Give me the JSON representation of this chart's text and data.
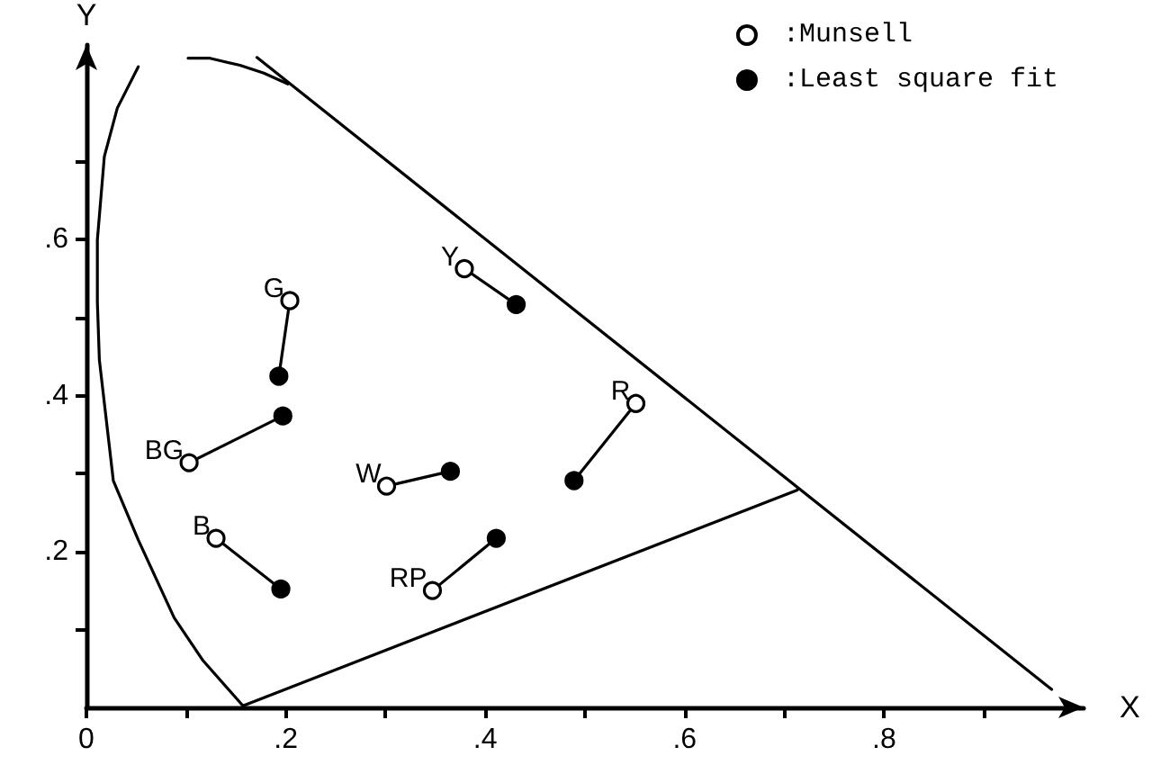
{
  "chart_data": {
    "type": "scatter",
    "xlabel": "X",
    "ylabel": "Y",
    "xlim": [
      0,
      1
    ],
    "ylim": [
      0,
      0.85
    ],
    "xticks": [
      {
        "value": 0,
        "label": "0"
      },
      {
        "value": 0.1,
        "label": null
      },
      {
        "value": 0.2,
        "label": ".2"
      },
      {
        "value": 0.3,
        "label": null
      },
      {
        "value": 0.4,
        "label": ".4"
      },
      {
        "value": 0.5,
        "label": null
      },
      {
        "value": 0.6,
        "label": ".6"
      },
      {
        "value": 0.7,
        "label": null
      },
      {
        "value": 0.8,
        "label": ".8"
      },
      {
        "value": 0.9,
        "label": null
      }
    ],
    "yticks": [
      {
        "value": 0.1,
        "label": null
      },
      {
        "value": 0.2,
        "label": ".2"
      },
      {
        "value": 0.3,
        "label": null
      },
      {
        "value": 0.4,
        "label": ".4"
      },
      {
        "value": 0.5,
        "label": null
      },
      {
        "value": 0.6,
        "label": ".6"
      },
      {
        "value": 0.7,
        "label": null
      }
    ],
    "legend": "top right",
    "marker": "circle",
    "series": [
      {
        "name": ":Munsell",
        "color": "#ffffff",
        "x": [
          0.379,
          0.204,
          0.103,
          0.301,
          0.13,
          0.347,
          0.551
        ],
        "values": [
          0.563,
          0.522,
          0.314,
          0.284,
          0.217,
          0.15,
          0.39
        ]
      },
      {
        "name": ":Least square fit",
        "color": "#000000",
        "x": [
          0.431,
          0.193,
          0.197,
          0.365,
          0.195,
          0.411,
          0.489
        ],
        "values": [
          0.517,
          0.425,
          0.374,
          0.303,
          0.152,
          0.217,
          0.291
        ]
      },
      {
        "type": "line",
        "color": "#000000",
        "marker": "none",
        "x": [
          0.379,
          0.431
        ],
        "values": [
          0.563,
          0.517
        ]
      },
      {
        "type": "line",
        "color": "#000000",
        "marker": "none",
        "x": [
          0.204,
          0.193
        ],
        "values": [
          0.522,
          0.425
        ]
      },
      {
        "type": "line",
        "color": "#000000",
        "marker": "none",
        "x": [
          0.103,
          0.197
        ],
        "values": [
          0.314,
          0.374
        ]
      },
      {
        "type": "line",
        "color": "#000000",
        "marker": "none",
        "x": [
          0.301,
          0.365
        ],
        "values": [
          0.284,
          0.303
        ]
      },
      {
        "type": "line",
        "color": "#000000",
        "marker": "none",
        "x": [
          0.13,
          0.195
        ],
        "values": [
          0.217,
          0.152
        ]
      },
      {
        "type": "line",
        "color": "#000000",
        "marker": "none",
        "x": [
          0.347,
          0.411
        ],
        "values": [
          0.15,
          0.217
        ]
      },
      {
        "type": "line",
        "color": "#000000",
        "marker": "none",
        "x": [
          0.551,
          0.489
        ],
        "values": [
          0.39,
          0.291
        ]
      },
      {
        "type": "line",
        "color": "#000000",
        "marker": "none",
        "x": [
          0.052,
          0.031,
          0.018,
          0.011,
          0.011,
          0.013,
          0.027,
          0.052,
          0.088,
          0.117,
          0.157,
          0.713
        ],
        "values": [
          0.822,
          0.769,
          0.707,
          0.6,
          0.52,
          0.446,
          0.291,
          0.215,
          0.115,
          0.06,
          0.002,
          0.279
        ]
      },
      {
        "type": "line",
        "color": "#000000",
        "marker": "none",
        "x": [
          0.102,
          0.124,
          0.154,
          0.178,
          0.202
        ],
        "values": [
          0.833,
          0.833,
          0.824,
          0.814,
          0.8
        ]
      },
      {
        "type": "line",
        "color": "#000000",
        "marker": "none",
        "x": [
          0.171,
          0.968
        ],
        "values": [
          0.834,
          0.023
        ]
      }
    ],
    "annotations": [
      {
        "text": "Y",
        "x": 0.379,
        "y": 0.563
      },
      {
        "text": "G",
        "x": 0.204,
        "y": 0.522
      },
      {
        "text": "BG",
        "x": 0.103,
        "y": 0.314
      },
      {
        "text": "W",
        "x": 0.301,
        "y": 0.284
      },
      {
        "text": "B",
        "x": 0.13,
        "y": 0.217
      },
      {
        "text": "RP",
        "x": 0.347,
        "y": 0.15
      },
      {
        "text": "R",
        "x": 0.551,
        "y": 0.39
      }
    ]
  }
}
